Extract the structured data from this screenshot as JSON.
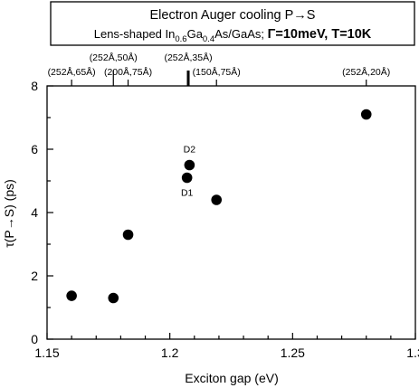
{
  "chart_data": {
    "type": "scatter",
    "title_line1": "Electron Auger cooling P→S",
    "title_line2": {
      "prefix": "Lens-shaped In",
      "sub1": "0.6",
      "mid": "Ga",
      "sub2": "0.4",
      "suffix": "As/GaAs; ",
      "bold": "Γ=10meV, T=10K"
    },
    "xlabel": "Exciton gap (eV)",
    "ylabel": "τ(P→S) (ps)",
    "xlim": [
      1.15,
      1.3
    ],
    "ylim": [
      0,
      8
    ],
    "xticks": [
      1.15,
      1.2,
      1.25,
      1.3
    ],
    "xtick_labels": [
      "1.15",
      "1.2",
      "1.25",
      "1.3"
    ],
    "yticks": [
      0,
      2,
      4,
      6,
      8
    ],
    "ytick_labels": [
      "0",
      "2",
      "4",
      "6",
      "8"
    ],
    "points": [
      {
        "x": 1.16,
        "y": 1.37
      },
      {
        "x": 1.177,
        "y": 1.3
      },
      {
        "x": 1.183,
        "y": 3.3
      },
      {
        "x": 1.207,
        "y": 5.1,
        "label": "D1"
      },
      {
        "x": 1.208,
        "y": 5.5,
        "label": "D2"
      },
      {
        "x": 1.219,
        "y": 4.4
      },
      {
        "x": 1.28,
        "y": 7.1
      }
    ],
    "top_annotations": [
      {
        "x": 1.16,
        "text": "(252Å,65Å)",
        "row": "lower",
        "marker": "thin"
      },
      {
        "x": 1.177,
        "text": "(252Å,50Å)",
        "row": "upper",
        "marker": "thin"
      },
      {
        "x": 1.183,
        "text": "(200Å,75Å)",
        "row": "lower",
        "marker": "thin"
      },
      {
        "x": 1.2075,
        "text": "(252Å,35Å)",
        "row": "upper",
        "marker": "thick"
      },
      {
        "x": 1.219,
        "text": "(150Å,75Å)",
        "row": "lower",
        "marker": "thin"
      },
      {
        "x": 1.28,
        "text": "(252Å,20Å)",
        "row": "lower",
        "marker": "thin"
      }
    ],
    "grid": false,
    "marker_color": "#000000"
  }
}
